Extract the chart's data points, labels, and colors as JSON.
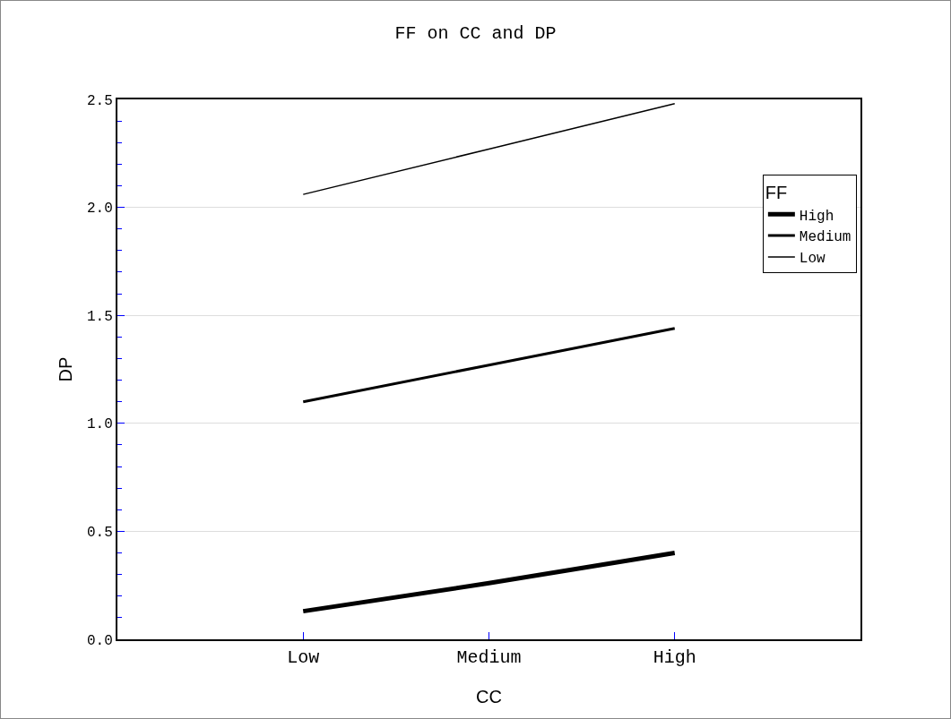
{
  "chart_data": {
    "type": "line",
    "title": "FF on CC and DP",
    "xlabel": "CC",
    "ylabel": "DP",
    "legend_title": "FF",
    "categories": [
      "Low",
      "Medium",
      "High"
    ],
    "series": [
      {
        "name": "High",
        "color": "#000000",
        "values": [
          0.13,
          0.26,
          0.4
        ]
      },
      {
        "name": "Medium",
        "color": "#000000",
        "values": [
          1.1,
          1.27,
          1.44
        ]
      },
      {
        "name": "Low",
        "color": "#000000",
        "values": [
          2.06,
          2.27,
          2.48
        ]
      }
    ],
    "ylim": [
      0,
      2.5
    ],
    "yticks": [
      {
        "value": 0,
        "label": "0.0"
      },
      {
        "value": 0.5,
        "label": "0.5"
      },
      {
        "value": 1,
        "label": "1.0"
      },
      {
        "value": 1.5,
        "label": "1.5"
      },
      {
        "value": 2,
        "label": "2.0"
      },
      {
        "value": 2.5,
        "label": "2.5"
      }
    ],
    "grid": "y",
    "legend": "top right",
    "marker": "none",
    "line_style": "solid"
  }
}
